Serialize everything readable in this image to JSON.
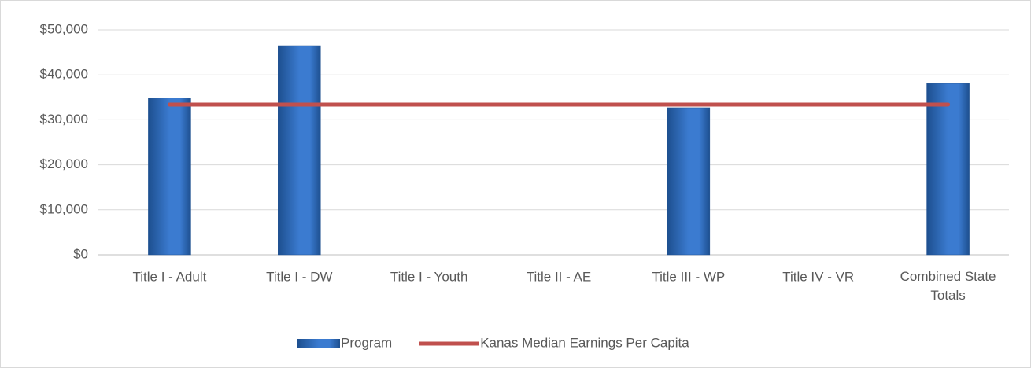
{
  "chart_data": {
    "type": "bar-line",
    "categories": [
      "Title I - Adult",
      "Title I - DW",
      "Title I - Youth",
      "Title II - AE",
      "Title III - WP",
      "Title IV - VR",
      "Combined State Totals"
    ],
    "series": [
      {
        "name": "Program",
        "type": "bar",
        "color": "#3b7bd0",
        "values": [
          34900,
          46500,
          null,
          null,
          32700,
          null,
          38100
        ]
      },
      {
        "name": "Kanas Median Earnings Per Capita",
        "type": "line",
        "color": "#c0504d",
        "values": [
          33400,
          33400,
          33400,
          33400,
          33400,
          33400,
          33400
        ]
      }
    ],
    "ylim": [
      0,
      50000
    ],
    "yticks": [
      {
        "value": 0,
        "label": "$0"
      },
      {
        "value": 10000,
        "label": "$10,000"
      },
      {
        "value": 20000,
        "label": "$20,000"
      },
      {
        "value": 30000,
        "label": "$30,000"
      },
      {
        "value": 40000,
        "label": "$40,000"
      },
      {
        "value": 50000,
        "label": "$50,000"
      }
    ],
    "grid": true,
    "legend": "bottom"
  }
}
